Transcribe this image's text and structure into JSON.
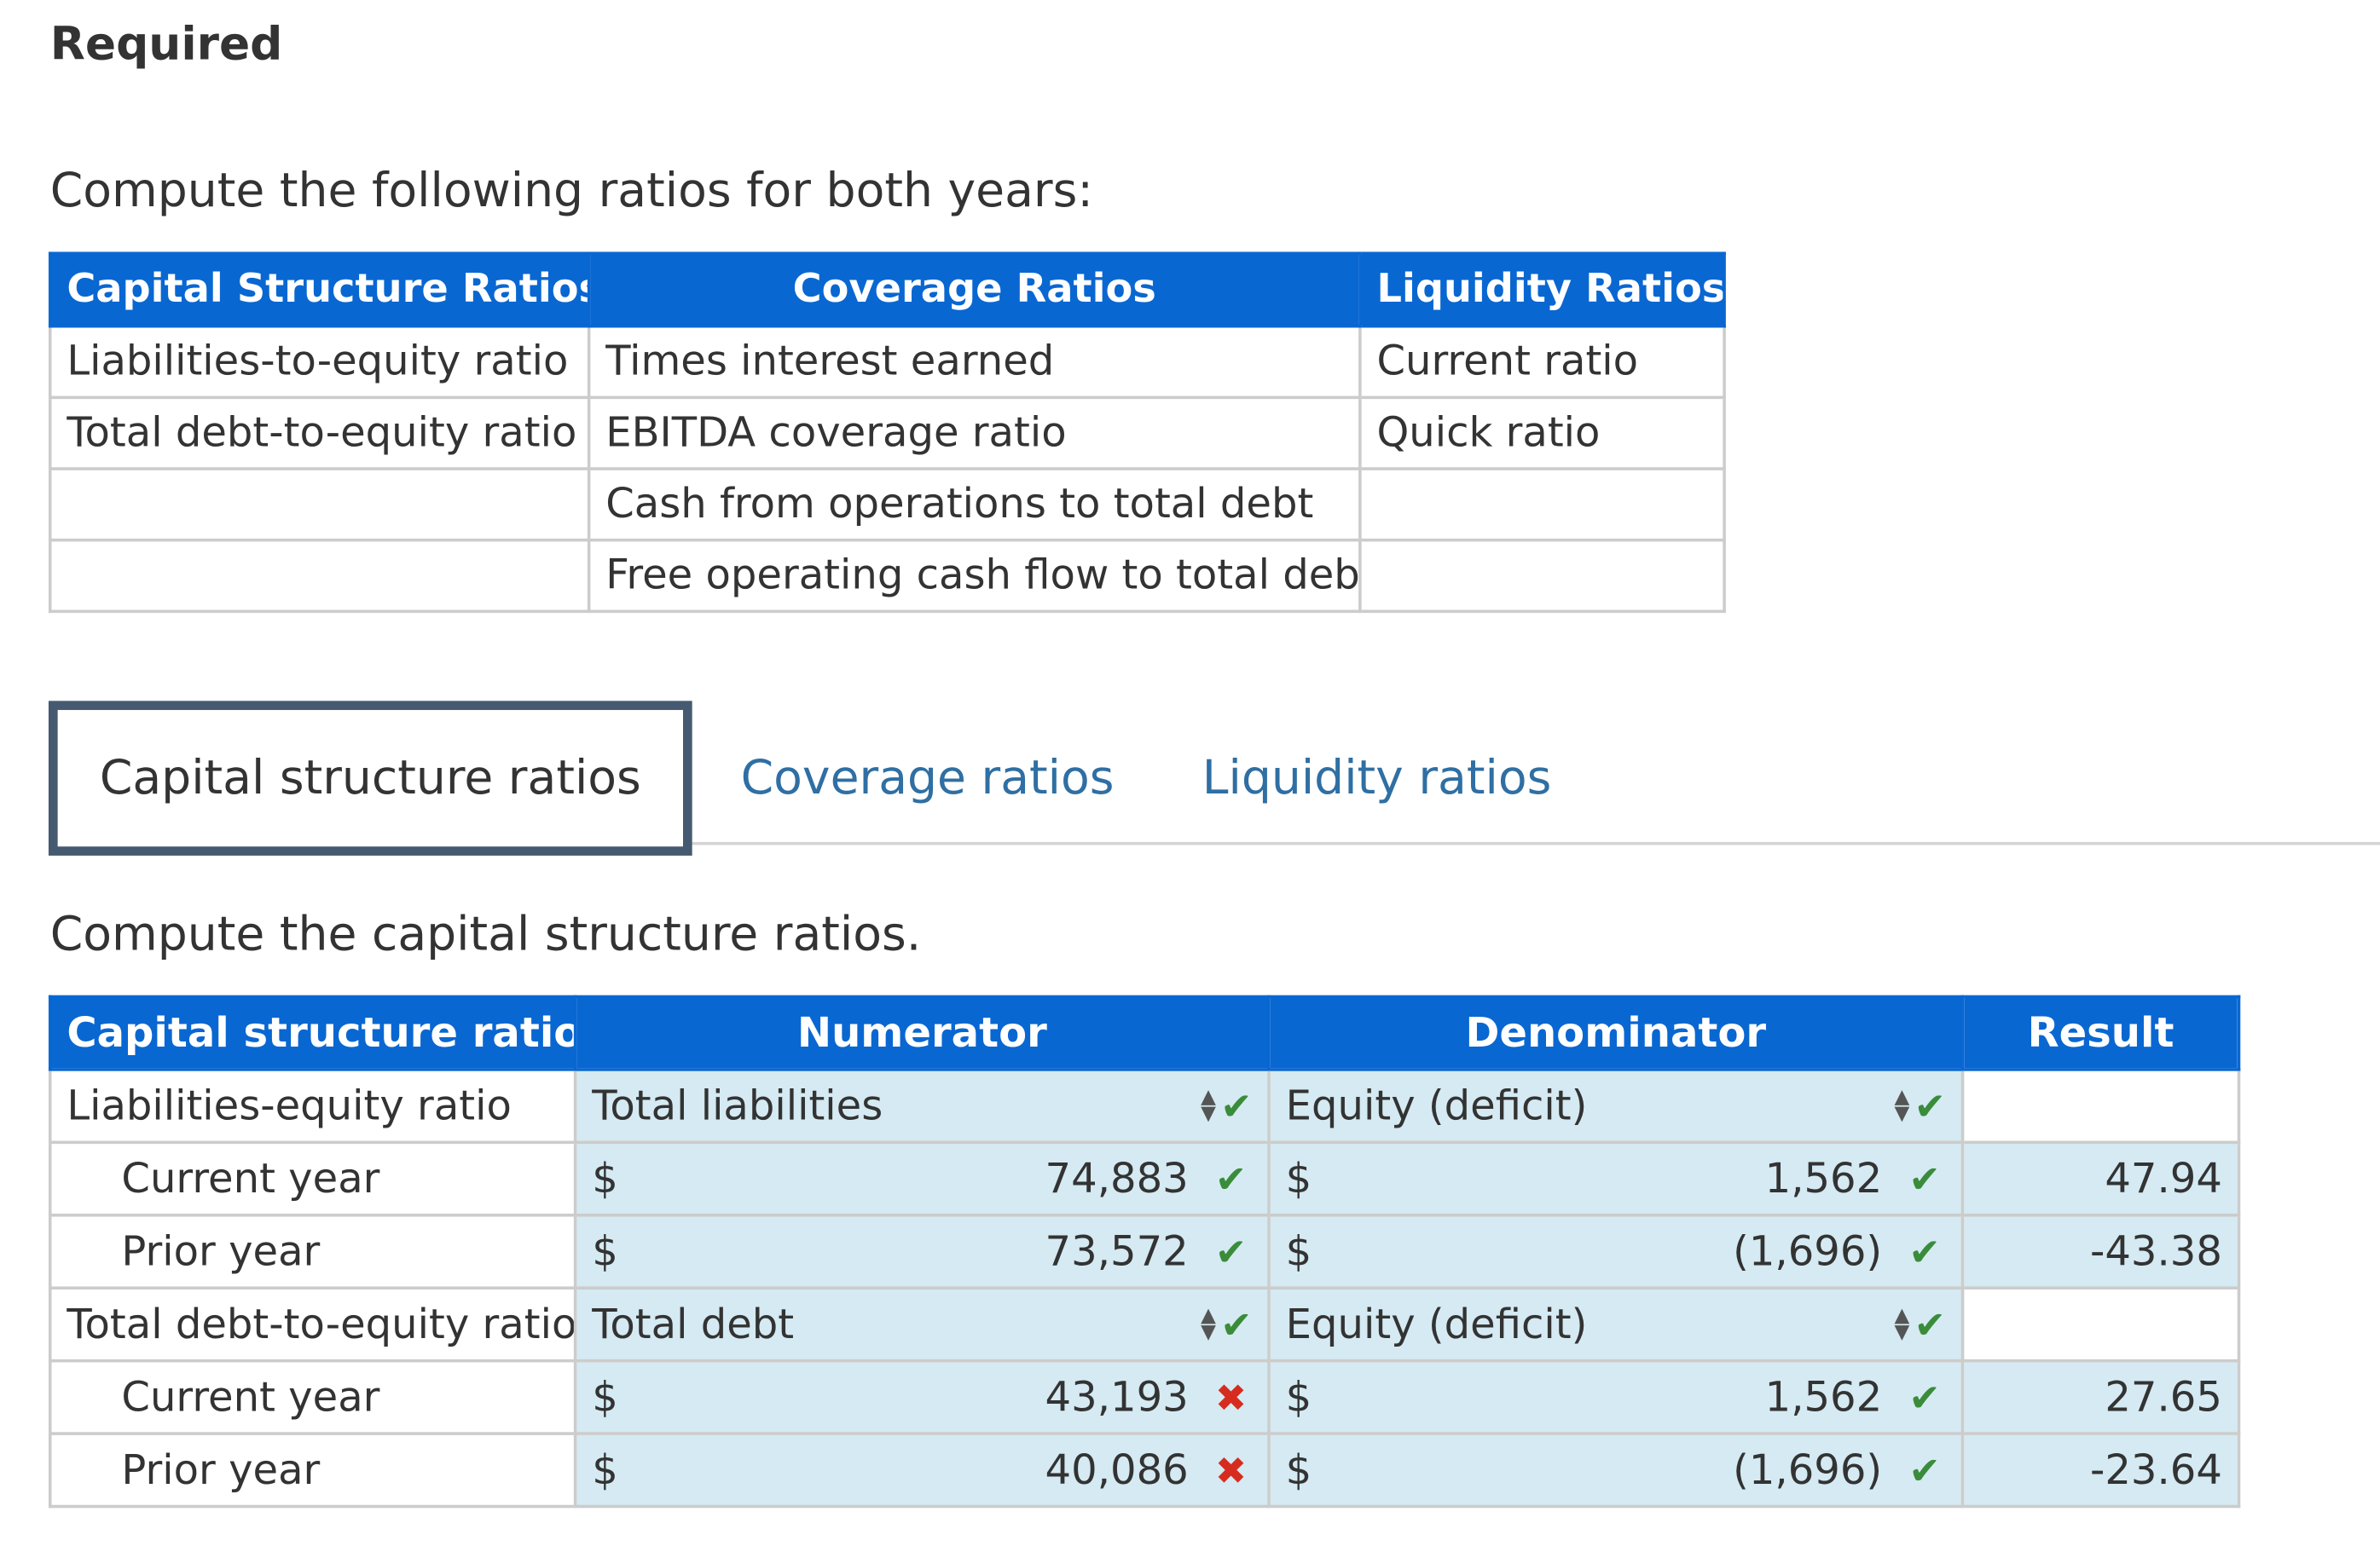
{
  "heading": "Required",
  "intro": "Compute the following ratios for both years:",
  "ratio_table": {
    "headers": [
      "Capital Structure Ratios",
      "Coverage Ratios",
      "Liquidity Ratios"
    ],
    "rows": [
      [
        "Liabilities-to-equity ratio",
        "Times interest earned",
        "Current ratio"
      ],
      [
        "Total debt-to-equity ratio",
        "EBITDA coverage ratio",
        "Quick ratio"
      ],
      [
        "",
        "Cash from operations to total debt",
        ""
      ],
      [
        "",
        "Free operating cash flow to total debt",
        ""
      ]
    ]
  },
  "tabs": {
    "active": "Capital structure ratios",
    "coverage": "Coverage ratios",
    "liquidity": "Liquidity ratios"
  },
  "subheading": "Compute the capital structure ratios.",
  "cap_table": {
    "headers": {
      "label": "Capital structure ratios",
      "numerator": "Numerator",
      "denominator": "Denominator",
      "result": "Result"
    },
    "currency": "$",
    "groups": [
      {
        "label": "Liabilities-equity ratio",
        "numerator_select": "Total liabilities",
        "denominator_select": "Equity (deficit)",
        "rows": [
          {
            "label": "Current year",
            "numerator": "74,883",
            "numerator_status": "correct",
            "denominator": "1,562",
            "denominator_status": "correct",
            "result": "47.94"
          },
          {
            "label": "Prior year",
            "numerator": "73,572",
            "numerator_status": "correct",
            "denominator": "(1,696)",
            "denominator_status": "correct",
            "result": "-43.38"
          }
        ]
      },
      {
        "label": "Total debt-to-equity ratio",
        "numerator_select": "Total debt",
        "denominator_select": "Equity (deficit)",
        "rows": [
          {
            "label": "Current year",
            "numerator": "43,193",
            "numerator_status": "incorrect",
            "denominator": "1,562",
            "denominator_status": "correct",
            "result": "27.65"
          },
          {
            "label": "Prior year",
            "numerator": "40,086",
            "numerator_status": "incorrect",
            "denominator": "(1,696)",
            "denominator_status": "correct",
            "result": "-23.64"
          }
        ]
      }
    ]
  },
  "icons": {
    "check": "check-icon",
    "cross": "cross-icon",
    "select": "select-arrows-icon"
  },
  "colors": {
    "header_blue": "#0967d2",
    "input_bg": "#d5eaf2",
    "correct_green": "#3a8c3a",
    "incorrect_red": "#d62c1f",
    "tab_link": "#2f6fa3",
    "active_tab_border": "#455a70"
  }
}
